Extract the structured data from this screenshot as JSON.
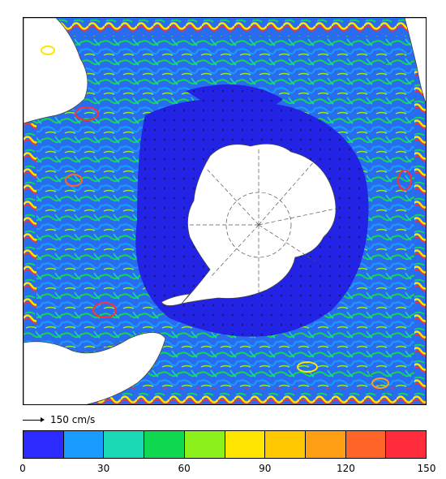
{
  "scale": {
    "label": "150 cm/s"
  },
  "colorbar": {
    "min": 0,
    "max": 150,
    "colors": [
      "#2b2bff",
      "#1a9cff",
      "#1ad9b4",
      "#10d850",
      "#8cf01a",
      "#ffe600",
      "#ffc800",
      "#ffa014",
      "#ff6428",
      "#ff2d3c"
    ],
    "ticks": [
      "0",
      "30",
      "60",
      "90",
      "120",
      "150"
    ]
  },
  "map": {
    "ocean_color": "#2323e6",
    "land_color": "#ffffff"
  }
}
